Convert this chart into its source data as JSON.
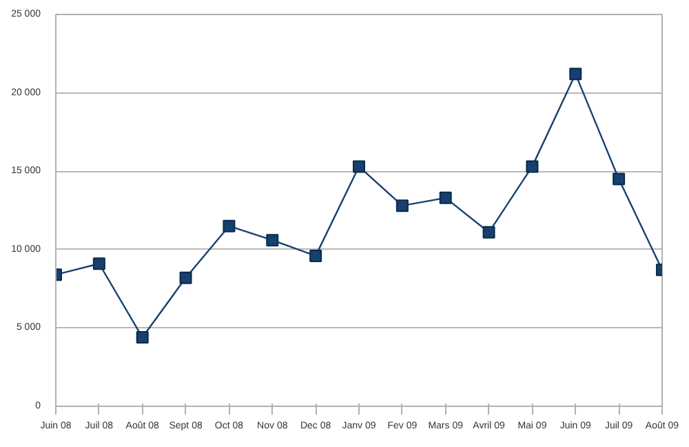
{
  "chart_data": {
    "type": "line",
    "categories": [
      "Juin 08",
      "Juil 08",
      "Août 08",
      "Sept 08",
      "Oct 08",
      "Nov 08",
      "Dec 08",
      "Janv 09",
      "Fev 09",
      "Mars 09",
      "Avril 09",
      "Mai 09",
      "Juin 09",
      "Juil 09",
      "Août 09"
    ],
    "series": [
      {
        "color": "#17406e",
        "values": [
          8400,
          9100,
          4400,
          8200,
          11500,
          10600,
          9600,
          15300,
          12800,
          13300,
          11100,
          15300,
          21200,
          14500,
          8700
        ]
      }
    ],
    "ylim": [
      0,
      25000
    ],
    "yticks": [
      {
        "value": 0,
        "label": "0"
      },
      {
        "value": 5000,
        "label": "5 000"
      },
      {
        "value": 10000,
        "label": "10 000"
      },
      {
        "value": 15000,
        "label": "15 000"
      },
      {
        "value": 20000,
        "label": "20 000"
      },
      {
        "value": 25000,
        "label": "25 000"
      }
    ],
    "grid": "y",
    "marker": "square",
    "line_style": "solid"
  }
}
